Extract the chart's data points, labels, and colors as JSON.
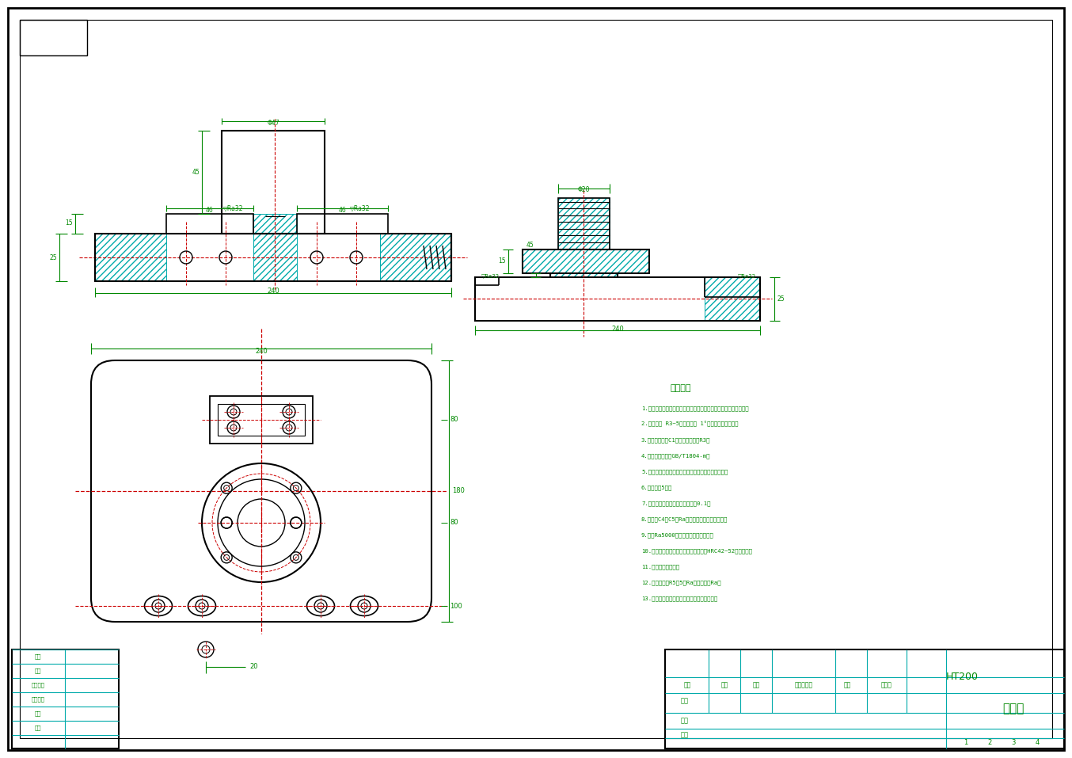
{
  "bg_color": "#ffffff",
  "border_color": "#000000",
  "gc": "#008800",
  "cc": "#00aaaa",
  "rc": "#cc0000",
  "bc": "#000000",
  "notes_title": "技术要求",
  "notes": [
    "1.铸件不允许有砂眼、气孔、缩孔等铸造缺陷，铸件须经时效处理。",
    "2.铸造圆角 R3~5，铸造斜度 1°，拔模斜度按标准。",
    "3.未注倒角均为C1，未注圆角均为R3。",
    "4.未注公差尺寸按GB/T1804-m。",
    "5.表面处理：喷漆，颜色按图样规定，各加工面除外。",
    "6.铸造精度5级。",
    "7.相邻两孔轴线平行度误差不大于0.1。",
    "8.铸件，C4，C5，Ra，磁粉探伤检验，无裂纹。",
    "9.铸件Ra5000，粗糙度，一般精确度。",
    "10.调质处理后齿面高频淬火，硬度达到HRC42~52调质硬度。",
    "11.调质后进行处理。",
    "12.铸造圆角：R5～5，Ra，铸造圆角Ra。",
    "13.铸件不允许有铸造缺陷，铸件、铸造缺陷。"
  ],
  "table_material": "HT200",
  "table_partname": "轴承座"
}
